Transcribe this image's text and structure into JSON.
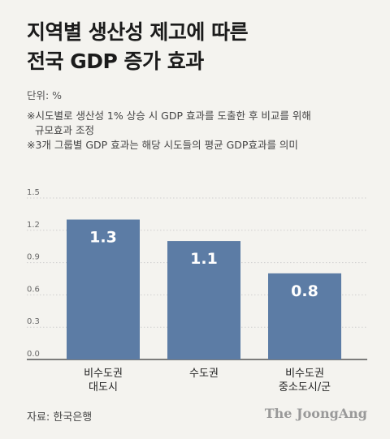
{
  "title_line1": "지역별 생산성 제고에 따른",
  "title_line2": "전국 GDP 증가 효과",
  "unit": "단위: %",
  "notes": [
    "※시도별로 생산성 1% 상승 시 GDP 효과를 도출한 후 비교를 위해",
    "규모효과 조정",
    "※3개 그룹별 GDP 효과는 해당 시도들의 평균 GDP효과를 의미"
  ],
  "source": "자료: 한국은행",
  "logo": "The JoongAng",
  "colors": {
    "bar": "#5c7ca5",
    "grid": "#cfcfcf",
    "axis": "#555555"
  },
  "chart_data": {
    "type": "bar",
    "categories": [
      [
        "비수도권",
        "대도시"
      ],
      [
        "수도권"
      ],
      [
        "비수도권",
        "중소도시/군"
      ]
    ],
    "values": [
      1.3,
      1.1,
      0.8
    ],
    "value_labels": [
      "1.3",
      "1.1",
      "0.8"
    ],
    "yticks": [
      "0.0",
      "0.3",
      "0.6",
      "0.9",
      "1.2",
      "1.5"
    ],
    "ylim": [
      0,
      1.5
    ],
    "grid": true
  }
}
